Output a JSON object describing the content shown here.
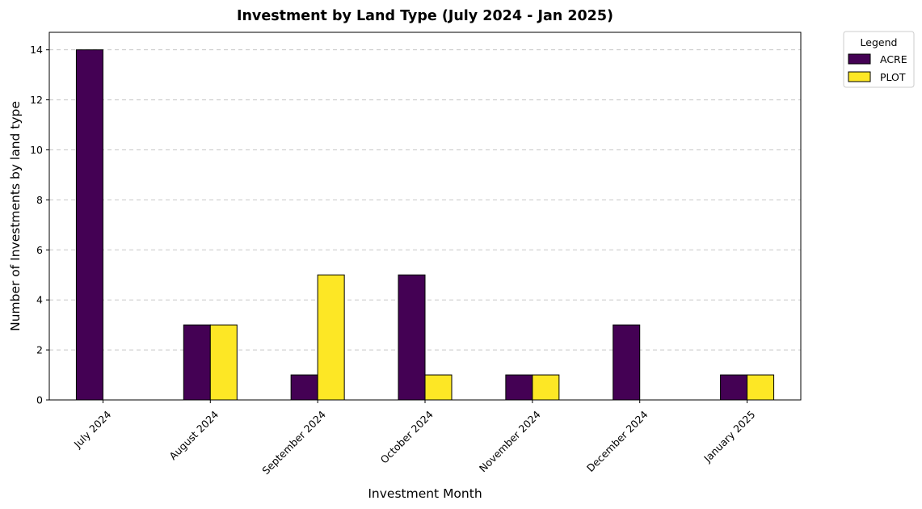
{
  "chart_data": {
    "type": "bar",
    "title": "Investment by Land Type (July 2024 - Jan 2025)",
    "xlabel": "Investment Month",
    "ylabel": "Number of Investments by land type",
    "categories": [
      "July 2024",
      "August 2024",
      "September 2024",
      "October 2024",
      "November 2024",
      "December 2024",
      "January 2025"
    ],
    "series": [
      {
        "name": "ACRE",
        "color": "#440154",
        "values": [
          14,
          3,
          1,
          5,
          1,
          3,
          1
        ]
      },
      {
        "name": "PLOT",
        "color": "#fde725",
        "values": [
          0,
          3,
          5,
          1,
          1,
          0,
          1
        ]
      }
    ],
    "ylim": [
      0,
      14.7
    ],
    "yticks": [
      0,
      2,
      4,
      6,
      8,
      10,
      12,
      14
    ],
    "grid": "y-dashed",
    "legend": {
      "title": "Legend",
      "placement": "outside-top-right"
    }
  }
}
